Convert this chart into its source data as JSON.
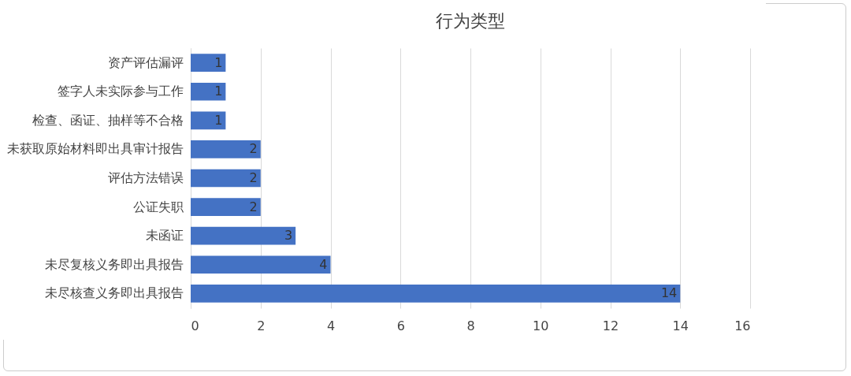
{
  "chart_data": {
    "type": "bar",
    "orientation": "horizontal",
    "title": "行为类型",
    "categories": [
      "资产评估漏评",
      "签字人未实际参与工作",
      "检查、函证、抽样等不合格",
      "未获取原始材料即出具审计报告",
      "评估方法错误",
      "公证失职",
      "未函证",
      "未尽复核义务即出具报告",
      "未尽核查义务即出具报告"
    ],
    "values": [
      1,
      1,
      1,
      2,
      2,
      2,
      3,
      4,
      14
    ],
    "color": "#4472c4",
    "xlim": [
      0,
      16
    ],
    "xticks": [
      0,
      2,
      4,
      6,
      8,
      10,
      12,
      14,
      16
    ],
    "grid": "x",
    "data_labels": true
  }
}
